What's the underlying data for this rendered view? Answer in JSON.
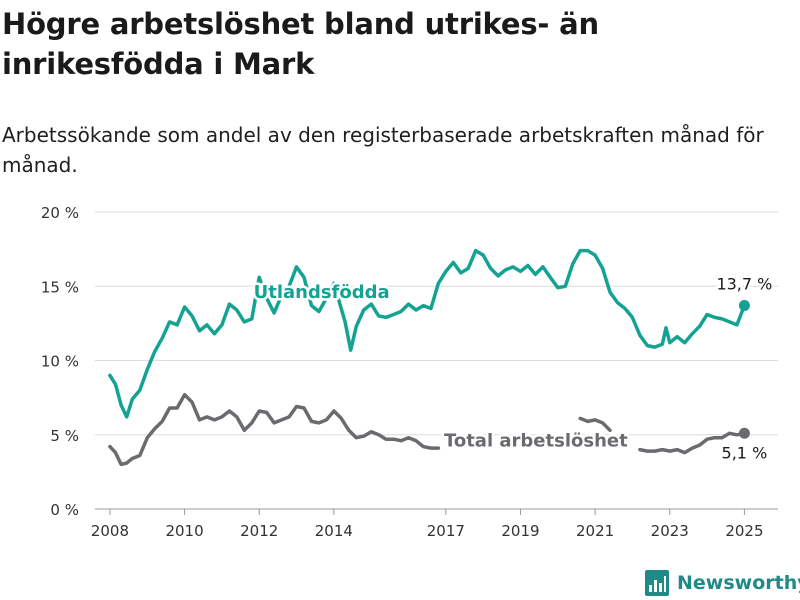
{
  "header": {
    "title": "Högre arbetslöshet bland utrikes- än inrikesfödda i Mark",
    "subtitle": "Arbetssökande som andel av den registerbaserade arbetskraften månad för månad."
  },
  "brand": {
    "name": "Newsworthy"
  },
  "colors": {
    "foreign": "#14a393",
    "total": "#6b6a6e",
    "grid": "#dcdcdc",
    "axis": "#333333"
  },
  "chart_data": {
    "type": "line",
    "title": "Högre arbetslöshet bland utrikes- än inrikesfödda i Mark",
    "subtitle": "Arbetssökande som andel av den registerbaserade arbetskraften månad för månad.",
    "ylim": [
      0,
      20
    ],
    "yticks": [
      0,
      5,
      10,
      15,
      20
    ],
    "ytick_labels": [
      "0 %",
      "5 %",
      "10 %",
      "15 %",
      "20 %"
    ],
    "xlim": [
      2007.6,
      2025.9
    ],
    "xticks": [
      2008,
      2010,
      2012,
      2014,
      2017,
      2019,
      2021,
      2023,
      2025
    ],
    "xtick_labels": [
      "2008",
      "2010",
      "2012",
      "2014",
      "2017",
      "2019",
      "2021",
      "2023",
      "2025"
    ],
    "grid": "horizontal",
    "series": [
      {
        "name": "Utlandsfödda",
        "color": "#14a393",
        "end_label": "13,7 %",
        "points": [
          [
            2008.0,
            9.0
          ],
          [
            2008.15,
            8.4
          ],
          [
            2008.3,
            7.0
          ],
          [
            2008.45,
            6.2
          ],
          [
            2008.6,
            7.4
          ],
          [
            2008.8,
            8.0
          ],
          [
            2009.0,
            9.4
          ],
          [
            2009.2,
            10.6
          ],
          [
            2009.4,
            11.5
          ],
          [
            2009.6,
            12.6
          ],
          [
            2009.8,
            12.4
          ],
          [
            2010.0,
            13.6
          ],
          [
            2010.2,
            13.0
          ],
          [
            2010.4,
            12.0
          ],
          [
            2010.6,
            12.4
          ],
          [
            2010.8,
            11.8
          ],
          [
            2011.0,
            12.4
          ],
          [
            2011.2,
            13.8
          ],
          [
            2011.4,
            13.4
          ],
          [
            2011.6,
            12.6
          ],
          [
            2011.8,
            12.8
          ],
          [
            2012.0,
            15.6
          ],
          [
            2012.2,
            14.2
          ],
          [
            2012.4,
            13.2
          ],
          [
            2012.6,
            14.4
          ],
          [
            2012.8,
            15.0
          ],
          [
            2013.0,
            16.3
          ],
          [
            2013.2,
            15.6
          ],
          [
            2013.4,
            13.7
          ],
          [
            2013.6,
            13.3
          ],
          [
            2013.8,
            14.2
          ],
          [
            2014.0,
            15.2
          ],
          [
            2014.15,
            13.9
          ],
          [
            2014.3,
            12.6
          ],
          [
            2014.45,
            10.7
          ],
          [
            2014.6,
            12.3
          ],
          [
            2014.8,
            13.4
          ],
          [
            2015.0,
            13.8
          ],
          [
            2015.2,
            13.0
          ],
          [
            2015.4,
            12.9
          ],
          [
            2015.6,
            13.1
          ],
          [
            2015.8,
            13.3
          ],
          [
            2016.0,
            13.8
          ],
          [
            2016.2,
            13.4
          ],
          [
            2016.4,
            13.7
          ],
          [
            2016.6,
            13.5
          ],
          [
            2016.8,
            15.2
          ],
          [
            2017.0,
            16.0
          ],
          [
            2017.2,
            16.6
          ],
          [
            2017.4,
            15.9
          ],
          [
            2017.6,
            16.2
          ],
          [
            2017.8,
            17.4
          ],
          [
            2018.0,
            17.1
          ],
          [
            2018.2,
            16.2
          ],
          [
            2018.4,
            15.7
          ],
          [
            2018.6,
            16.1
          ],
          [
            2018.8,
            16.3
          ],
          [
            2019.0,
            16.0
          ],
          [
            2019.2,
            16.4
          ],
          [
            2019.4,
            15.8
          ],
          [
            2019.6,
            16.3
          ],
          [
            2019.8,
            15.6
          ],
          [
            2020.0,
            14.9
          ],
          [
            2020.2,
            15.0
          ],
          [
            2020.4,
            16.5
          ],
          [
            2020.6,
            17.4
          ],
          [
            2020.8,
            17.4
          ],
          [
            2021.0,
            17.1
          ],
          [
            2021.2,
            16.2
          ],
          [
            2021.4,
            14.6
          ],
          [
            2021.6,
            13.9
          ],
          [
            2021.8,
            13.5
          ],
          [
            2022.0,
            12.9
          ],
          [
            2022.2,
            11.7
          ],
          [
            2022.4,
            11.0
          ],
          [
            2022.6,
            10.9
          ],
          [
            2022.8,
            11.1
          ],
          [
            2022.9,
            12.2
          ],
          [
            2023.0,
            11.2
          ],
          [
            2023.2,
            11.6
          ],
          [
            2023.4,
            11.2
          ],
          [
            2023.6,
            11.8
          ],
          [
            2023.8,
            12.3
          ],
          [
            2024.0,
            13.1
          ],
          [
            2024.2,
            12.9
          ],
          [
            2024.4,
            12.8
          ],
          [
            2024.6,
            12.6
          ],
          [
            2024.8,
            12.4
          ],
          [
            2025.0,
            13.7
          ]
        ]
      },
      {
        "name": "Total arbetslöshet",
        "color": "#6b6a6e",
        "end_label": "5,1 %",
        "points": [
          [
            2008.0,
            4.2
          ],
          [
            2008.15,
            3.8
          ],
          [
            2008.3,
            3.0
          ],
          [
            2008.45,
            3.1
          ],
          [
            2008.6,
            3.4
          ],
          [
            2008.8,
            3.6
          ],
          [
            2009.0,
            4.8
          ],
          [
            2009.2,
            5.4
          ],
          [
            2009.4,
            5.9
          ],
          [
            2009.6,
            6.8
          ],
          [
            2009.8,
            6.8
          ],
          [
            2010.0,
            7.7
          ],
          [
            2010.2,
            7.2
          ],
          [
            2010.4,
            6.0
          ],
          [
            2010.6,
            6.2
          ],
          [
            2010.8,
            6.0
          ],
          [
            2011.0,
            6.2
          ],
          [
            2011.2,
            6.6
          ],
          [
            2011.4,
            6.2
          ],
          [
            2011.6,
            5.3
          ],
          [
            2011.8,
            5.8
          ],
          [
            2012.0,
            6.6
          ],
          [
            2012.2,
            6.5
          ],
          [
            2012.4,
            5.8
          ],
          [
            2012.6,
            6.0
          ],
          [
            2012.8,
            6.2
          ],
          [
            2013.0,
            6.9
          ],
          [
            2013.2,
            6.8
          ],
          [
            2013.4,
            5.9
          ],
          [
            2013.6,
            5.8
          ],
          [
            2013.8,
            6.0
          ],
          [
            2014.0,
            6.6
          ],
          [
            2014.2,
            6.1
          ],
          [
            2014.4,
            5.3
          ],
          [
            2014.6,
            4.8
          ],
          [
            2014.8,
            4.9
          ],
          [
            2015.0,
            5.2
          ],
          [
            2015.2,
            5.0
          ],
          [
            2015.4,
            4.7
          ],
          [
            2015.6,
            4.7
          ],
          [
            2015.8,
            4.6
          ],
          [
            2016.0,
            4.8
          ],
          [
            2016.2,
            4.6
          ],
          [
            2016.4,
            4.2
          ],
          [
            2016.6,
            4.1
          ],
          [
            2016.8,
            4.1
          ],
          null,
          [
            2020.6,
            6.1
          ],
          [
            2020.8,
            5.9
          ],
          [
            2021.0,
            6.0
          ],
          [
            2021.2,
            5.8
          ],
          [
            2021.4,
            5.3
          ],
          null,
          [
            2022.2,
            4.0
          ],
          [
            2022.4,
            3.9
          ],
          [
            2022.6,
            3.9
          ],
          [
            2022.8,
            4.0
          ],
          [
            2023.0,
            3.9
          ],
          [
            2023.2,
            4.0
          ],
          [
            2023.4,
            3.8
          ],
          [
            2023.6,
            4.1
          ],
          [
            2023.8,
            4.3
          ],
          [
            2024.0,
            4.7
          ],
          [
            2024.2,
            4.8
          ],
          [
            2024.4,
            4.8
          ],
          [
            2024.6,
            5.1
          ],
          [
            2024.8,
            5.0
          ],
          [
            2025.0,
            5.1
          ]
        ]
      }
    ]
  }
}
